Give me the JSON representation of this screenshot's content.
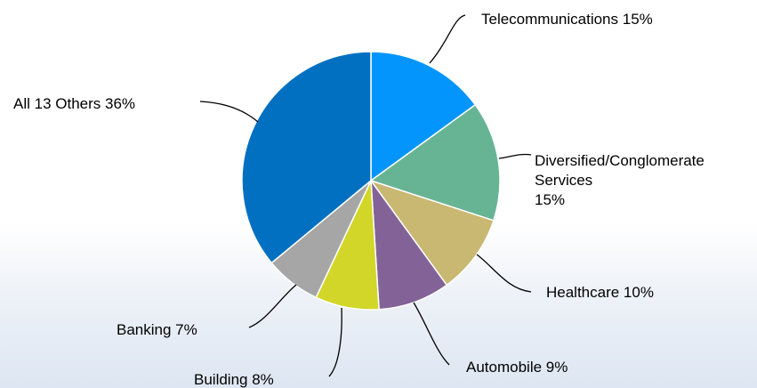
{
  "chart_data": {
    "type": "pie",
    "title": "",
    "slices": [
      {
        "label": "Telecommunications 15%",
        "value": 15,
        "color": "#0395fc"
      },
      {
        "label": "Diversified/Conglomerate Services 15%",
        "label_lines": [
          "Diversified/Conglomerate",
          "Services",
          "15%"
        ],
        "value": 15,
        "color": "#67b495"
      },
      {
        "label": "Healthcare 10%",
        "value": 10,
        "color": "#c8b871"
      },
      {
        "label": "Automobile 9%",
        "value": 9,
        "color": "#836397"
      },
      {
        "label": "Building 8%",
        "value": 8,
        "color": "#d2d628"
      },
      {
        "label": "Banking 7%",
        "value": 7,
        "color": "#a6a6a6"
      },
      {
        "label": "All 13 Others 36%",
        "value": 36,
        "color": "#0270c1"
      }
    ],
    "start": "12 o'clock",
    "direction": "clockwise",
    "legend": "none (labels with leader lines)"
  }
}
